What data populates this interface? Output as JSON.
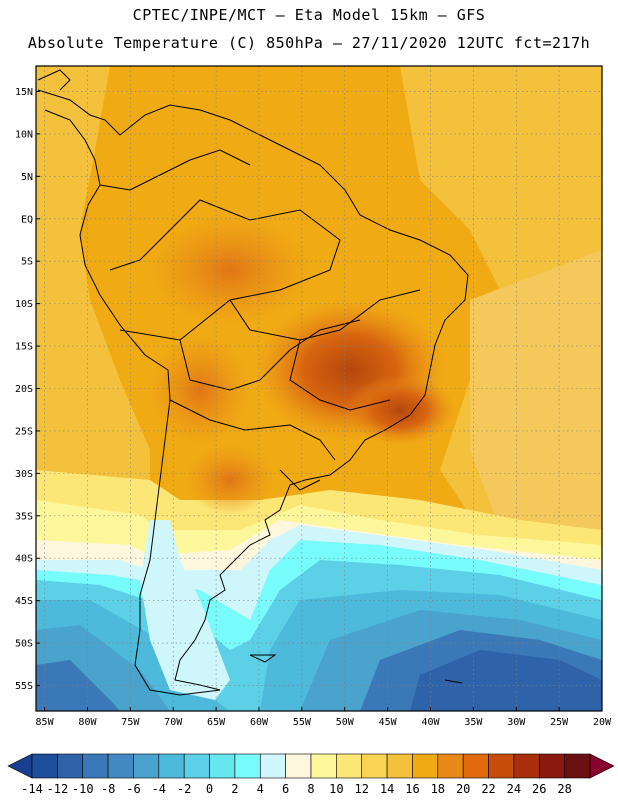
{
  "header": {
    "line1": "CPTEC/INPE/MCT –  Eta Model 15km – GFS",
    "line2": "Absolute Temperature (C) 850hPa – 27/11/2020 12UTC fct=217h"
  },
  "map": {
    "lat_range": [
      -58,
      18
    ],
    "lon_range": [
      -86,
      -20
    ],
    "lat_ticks": [
      "15N",
      "10N",
      "5N",
      "EQ",
      "5S",
      "10S",
      "15S",
      "20S",
      "25S",
      "30S",
      "35S",
      "40S",
      "45S",
      "50S",
      "55S"
    ],
    "lat_values": [
      15,
      10,
      5,
      0,
      -5,
      -10,
      -15,
      -20,
      -25,
      -30,
      -35,
      -40,
      -45,
      -50,
      -55
    ],
    "lon_ticks": [
      "85W",
      "80W",
      "75W",
      "70W",
      "65W",
      "60W",
      "55W",
      "50W",
      "45W",
      "40W",
      "35W",
      "30W",
      "25W",
      "20W"
    ],
    "lon_values": [
      -85,
      -80,
      -75,
      -70,
      -65,
      -60,
      -55,
      -50,
      -45,
      -40,
      -35,
      -30,
      -25,
      -20
    ],
    "grid": true
  },
  "colorbar": {
    "labels": [
      "-14",
      "-12",
      "-10",
      "-8",
      "-6",
      "-4",
      "-2",
      "0",
      "2",
      "4",
      "6",
      "8",
      "10",
      "12",
      "14",
      "16",
      "18",
      "20",
      "22",
      "24",
      "26",
      "28"
    ],
    "colors": [
      "#1a3f8f",
      "#1e4f9c",
      "#2e63aa",
      "#3a78b8",
      "#4189c2",
      "#49a3cc",
      "#4db9db",
      "#5bd0e6",
      "#66e6ee",
      "#78fbfb",
      "#cff6fb",
      "#fff7dd",
      "#fdf79b",
      "#fce776",
      "#fad555",
      "#f3c13c",
      "#f0aa14",
      "#e88a18",
      "#e06a0c",
      "#c84c0a",
      "#aa2f0d",
      "#8a1a10",
      "#6a1010",
      "#880030"
    ]
  }
}
